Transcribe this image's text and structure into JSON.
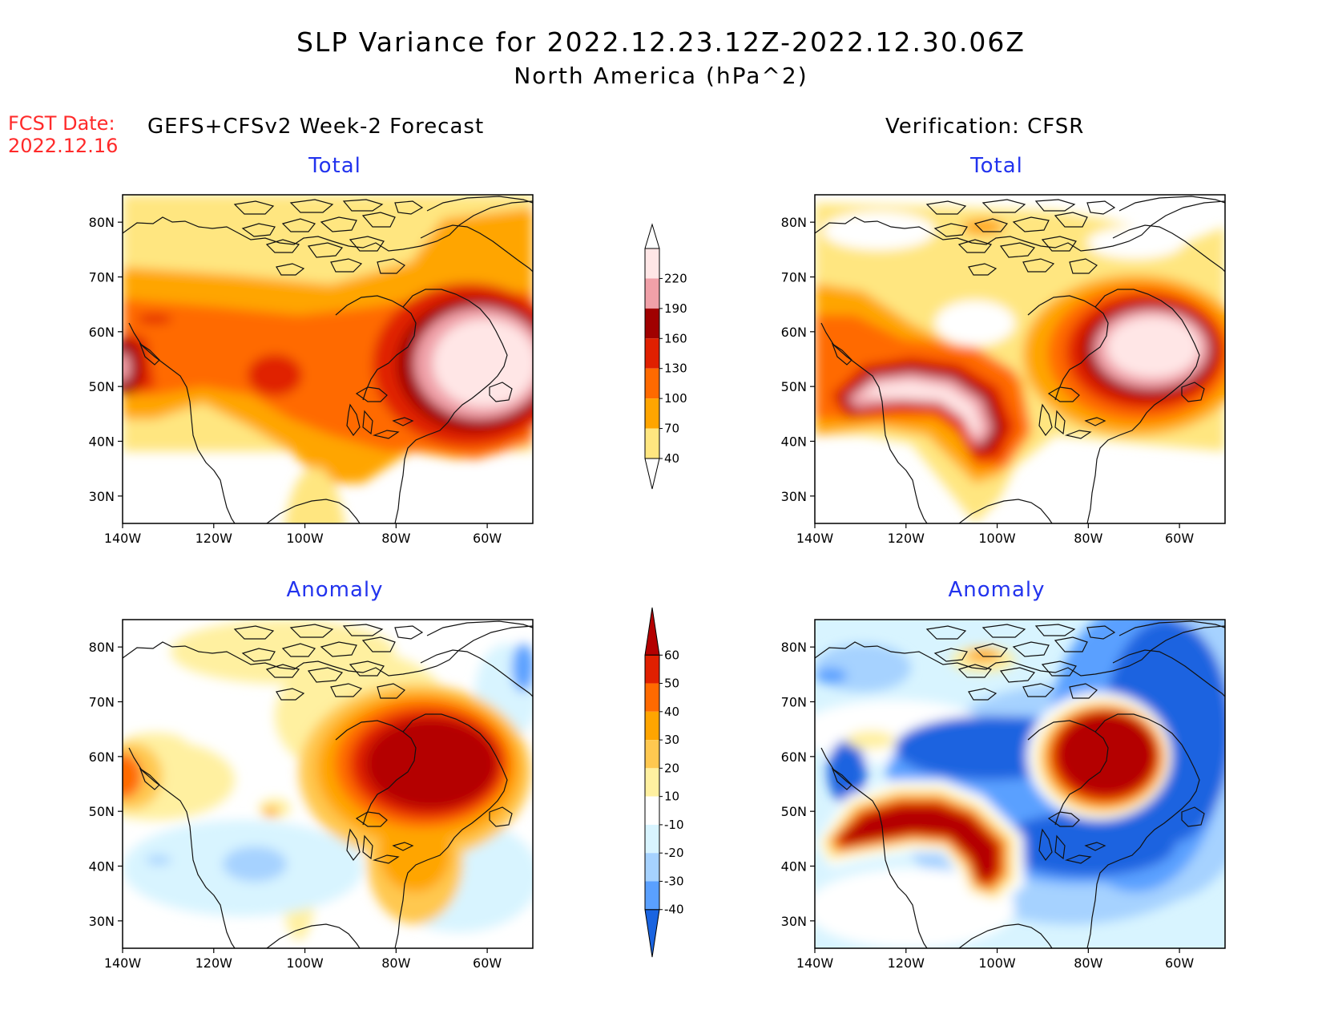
{
  "header": {
    "title": "SLP Variance for 2022.12.23.12Z-2022.12.30.06Z",
    "subtitle": "North America (hPa^2)",
    "fcst_date_label": "FCST Date:",
    "fcst_date_value": "2022.12.16",
    "left_column_title": "GEFS+CFSv2 Week-2 Forecast",
    "right_column_title": "Verification: CFSR"
  },
  "panels": {
    "forecast_total_title": "Total",
    "verification_total_title": "Total",
    "forecast_anomaly_title": "Anomaly",
    "verification_anomaly_title": "Anomaly"
  },
  "axes": {
    "lat_labels": [
      "80N",
      "70N",
      "60N",
      "50N",
      "40N",
      "30N"
    ],
    "lon_labels": [
      "140W",
      "120W",
      "100W",
      "80W",
      "60W"
    ],
    "lat_range": [
      25,
      85
    ],
    "lon_range": [
      -140,
      -50
    ]
  },
  "colorbars": {
    "total": {
      "levels": [
        "40",
        "70",
        "100",
        "130",
        "160",
        "190",
        "220"
      ],
      "colors": [
        "#ffe680",
        "#ffa500",
        "#ff6a00",
        "#e02000",
        "#a00000",
        "#f0a0a8",
        "#ffe6e6"
      ]
    },
    "anomaly": {
      "levels": [
        "60",
        "50",
        "40",
        "30",
        "20",
        "10",
        "-10",
        "-20",
        "-30",
        "-40"
      ],
      "colors": [
        "#b40000",
        "#e02000",
        "#ff6a00",
        "#ffa500",
        "#ffc850",
        "#fff0a0",
        "#ffffff",
        "#d8f4ff",
        "#a6d2ff",
        "#5aa0ff",
        "#1a64e0"
      ]
    }
  }
}
